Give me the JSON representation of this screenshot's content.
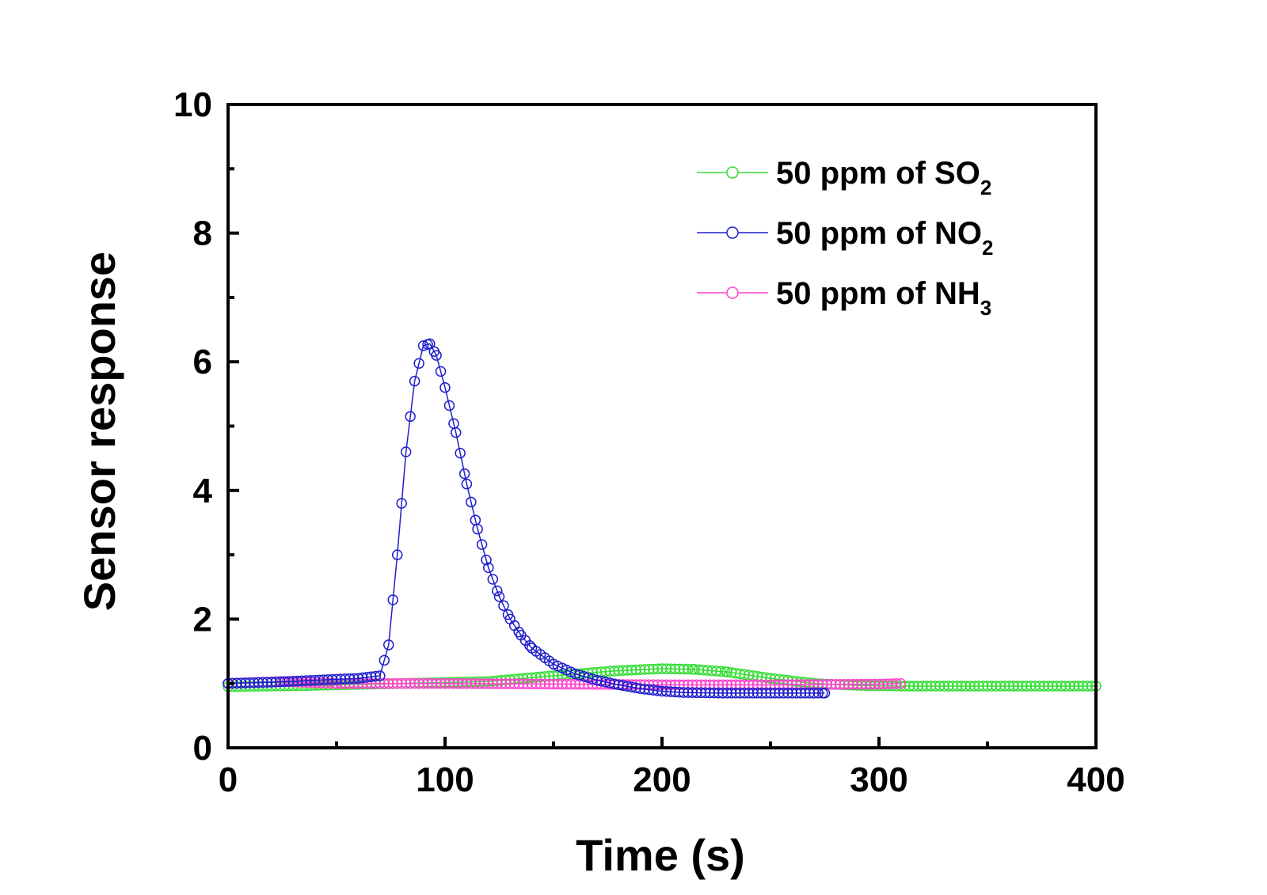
{
  "chart_data": {
    "type": "scatter",
    "title": "",
    "xlabel": "Time (s)",
    "ylabel": "Sensor response",
    "xlim": [
      0,
      400
    ],
    "ylim": [
      0,
      10
    ],
    "xticks": [
      0,
      100,
      200,
      300,
      400
    ],
    "yticks": [
      0,
      2,
      4,
      6,
      8,
      10
    ],
    "grid": false,
    "legend_position": "top-right",
    "series": [
      {
        "name": "50 ppm of SO2",
        "label_main": "50 ppm of SO",
        "label_sub": "2",
        "color": "#33dd33",
        "x": [
          0,
          40,
          80,
          120,
          150,
          180,
          200,
          215,
          230,
          250,
          270,
          290,
          310,
          340,
          370,
          400
        ],
        "y": [
          0.95,
          0.97,
          1.0,
          1.03,
          1.12,
          1.2,
          1.23,
          1.22,
          1.18,
          1.08,
          1.0,
          0.97,
          0.96,
          0.96,
          0.96,
          0.96
        ]
      },
      {
        "name": "50 ppm of NO2",
        "label_main": "50 ppm of NO",
        "label_sub": "2",
        "color": "#1f1fcc",
        "x": [
          0,
          20,
          40,
          60,
          70,
          74,
          78,
          82,
          86,
          90,
          93,
          96,
          100,
          105,
          110,
          115,
          120,
          125,
          130,
          135,
          140,
          150,
          160,
          170,
          180,
          190,
          200,
          210,
          230,
          250,
          275
        ],
        "y": [
          1.0,
          1.02,
          1.05,
          1.08,
          1.12,
          1.6,
          3.0,
          4.6,
          5.7,
          6.25,
          6.28,
          6.1,
          5.6,
          4.9,
          4.1,
          3.4,
          2.8,
          2.35,
          2.0,
          1.75,
          1.55,
          1.3,
          1.15,
          1.05,
          0.98,
          0.92,
          0.88,
          0.86,
          0.85,
          0.85,
          0.85
        ]
      },
      {
        "name": "50 ppm of NH3",
        "label_main": "50 ppm of NH",
        "label_sub": "3",
        "color": "#ff44cc",
        "x": [
          0,
          25,
          50,
          100,
          150,
          200,
          250,
          300,
          310
        ],
        "y": [
          1.0,
          1.03,
          1.0,
          1.0,
          0.99,
          0.98,
          0.98,
          0.99,
          1.0
        ]
      }
    ]
  }
}
